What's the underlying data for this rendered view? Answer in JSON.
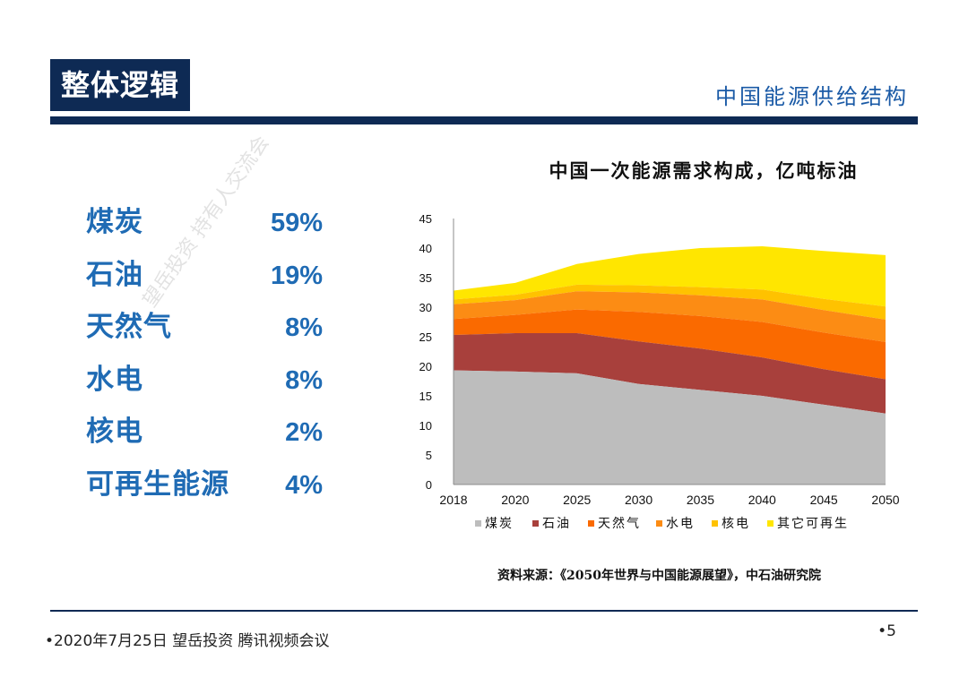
{
  "header": {
    "title": "整体逻辑",
    "subtitle": "中国能源供给结构"
  },
  "stats": [
    {
      "label": "煤炭",
      "value": "59%"
    },
    {
      "label": "石油",
      "value": "19%"
    },
    {
      "label": "天然气",
      "value": "8%"
    },
    {
      "label": "水电",
      "value": "8%"
    },
    {
      "label": "核电",
      "value": "2%"
    },
    {
      "label": "可再生能源",
      "value": "4%"
    }
  ],
  "watermark": "望岳投资 持有人交流会",
  "chart_data": {
    "type": "area",
    "stacked": true,
    "title": "中国一次能源需求构成，亿吨标油",
    "categories": [
      "2018",
      "2020",
      "2025",
      "2030",
      "2035",
      "2040",
      "2045",
      "2050"
    ],
    "ylim": [
      0,
      45
    ],
    "yticks": [
      0,
      5,
      10,
      15,
      20,
      25,
      30,
      35,
      40,
      45
    ],
    "grid": false,
    "legend": "bottom",
    "series": [
      {
        "name": "煤炭",
        "color": "#bdbdbd",
        "values": [
          19.3,
          19.1,
          18.8,
          17.0,
          16.0,
          15.0,
          13.5,
          12.0
        ]
      },
      {
        "name": "石油",
        "color": "#a8403c",
        "values": [
          6.0,
          6.5,
          6.8,
          7.2,
          7.0,
          6.5,
          6.0,
          5.8
        ]
      },
      {
        "name": "天然气",
        "color": "#fa6a00",
        "values": [
          2.7,
          3.1,
          4.0,
          5.0,
          5.5,
          6.0,
          6.2,
          6.3
        ]
      },
      {
        "name": "水电",
        "color": "#fc8c14",
        "values": [
          2.5,
          2.5,
          3.1,
          3.3,
          3.5,
          3.8,
          3.8,
          3.8
        ]
      },
      {
        "name": "核电",
        "color": "#ffc200",
        "values": [
          0.8,
          0.9,
          1.1,
          1.2,
          1.4,
          1.7,
          1.9,
          2.2
        ]
      },
      {
        "name": "其它可再生",
        "color": "#ffe600",
        "values": [
          1.5,
          2.0,
          3.5,
          5.3,
          6.6,
          7.3,
          8.1,
          8.7
        ]
      }
    ]
  },
  "source": "资料来源：《2050年世界与中国能源展望》，中石油研究院",
  "footer": {
    "left": "•2020年7月25日 望岳投资 腾讯视频会议",
    "page": "•5"
  }
}
